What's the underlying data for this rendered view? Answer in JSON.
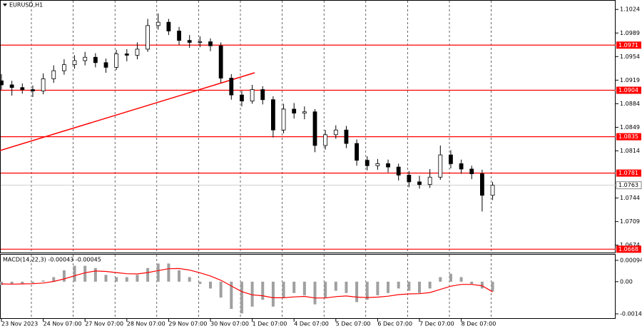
{
  "chart_data": [
    {
      "type": "candlestick",
      "title": "EURUSD,H1",
      "categories": [
        "23 Nov 2023",
        null,
        null,
        null,
        "24 Nov 07:00",
        null,
        null,
        null,
        "27 Nov 07:00",
        null,
        null,
        null,
        "28 Nov 07:00",
        null,
        null,
        null,
        "29 Nov 07:00",
        null,
        null,
        null,
        "30 Nov 07:00",
        null,
        null,
        null,
        "1 Dec 07:00",
        null,
        null,
        null,
        "4 Dec 07:00",
        null,
        null,
        null,
        "5 Dec 07:00",
        null,
        null,
        null,
        "6 Dec 07:00",
        null,
        null,
        null,
        "7 Dec 07:00",
        null,
        null,
        null,
        "8 Dec 07:00",
        null,
        null,
        null
      ],
      "open": [
        1.0918,
        1.0912,
        1.0908,
        1.0905,
        1.0903,
        1.0921,
        1.0933,
        1.0942,
        1.0948,
        1.0953,
        1.0945,
        1.0938,
        1.0958,
        1.0956,
        1.0965,
        1.1,
        1.1005,
        1.0992,
        1.0978,
        1.0975,
        1.0976,
        1.097,
        1.0922,
        1.0897,
        1.0888,
        1.0905,
        1.089,
        1.0845,
        1.0876,
        1.087,
        1.0872,
        1.0822,
        1.0838,
        1.0845,
        1.0825,
        1.08,
        1.0792,
        1.0795,
        1.079,
        1.0778,
        1.0768,
        1.0764,
        1.0775,
        1.0808,
        1.0795,
        1.0787,
        1.078,
        1.0748
      ],
      "high": [
        1.0928,
        1.0918,
        1.0914,
        1.0911,
        1.0929,
        1.0941,
        1.095,
        1.0956,
        1.0961,
        1.0959,
        1.0951,
        1.0964,
        1.0965,
        1.0975,
        1.101,
        1.1018,
        1.101,
        1.0998,
        1.0986,
        1.0984,
        1.0981,
        1.0975,
        1.0928,
        1.0903,
        1.0912,
        1.091,
        1.0895,
        1.0884,
        1.0885,
        1.088,
        1.0876,
        1.0845,
        1.0852,
        1.0851,
        1.0831,
        1.0806,
        1.0802,
        1.0801,
        1.0795,
        1.0784,
        1.0777,
        1.0787,
        1.0822,
        1.0815,
        1.0801,
        1.0792,
        1.0786,
        1.0768
      ],
      "low": [
        1.0905,
        1.0896,
        1.0899,
        1.0894,
        1.0898,
        1.0915,
        1.0927,
        1.0936,
        1.0941,
        1.0938,
        1.093,
        1.0934,
        1.0947,
        1.095,
        1.0961,
        1.0994,
        1.0986,
        1.0971,
        1.0967,
        1.0968,
        1.0962,
        1.0915,
        1.089,
        1.088,
        1.0884,
        1.0883,
        1.0834,
        1.084,
        1.0862,
        1.0861,
        1.0812,
        1.0816,
        1.0832,
        1.0818,
        1.0792,
        1.0785,
        1.0786,
        1.0782,
        1.077,
        1.076,
        1.0758,
        1.0759,
        1.0771,
        1.0788,
        1.078,
        1.0772,
        1.0724,
        1.0741
      ],
      "close": [
        1.0912,
        1.0908,
        1.0905,
        1.0903,
        1.0921,
        1.0933,
        1.0942,
        1.0948,
        1.0953,
        1.0945,
        1.0938,
        1.0958,
        1.0956,
        1.0965,
        1.1,
        1.1005,
        1.0992,
        1.0978,
        1.0975,
        1.0976,
        1.097,
        1.0922,
        1.0897,
        1.0888,
        1.0905,
        1.089,
        1.0845,
        1.0876,
        1.087,
        1.0872,
        1.0822,
        1.0838,
        1.0845,
        1.0825,
        1.08,
        1.0792,
        1.0795,
        1.079,
        1.0778,
        1.0768,
        1.0764,
        1.0775,
        1.0808,
        1.0795,
        1.0787,
        1.078,
        1.0748,
        1.0763
      ],
      "ylim": [
        1.0662,
        1.1038
      ],
      "yticks": [
        1.1024,
        1.0989,
        1.0954,
        1.0919,
        1.0884,
        1.0849,
        1.0814,
        1.0744,
        1.0709,
        1.0674
      ],
      "levels": [
        1.0971,
        1.0904,
        1.0835,
        1.0781,
        1.0668
      ],
      "level_color": "#ff0000",
      "current_price": 1.0763,
      "color": "#000000"
    },
    {
      "type": "macd",
      "title": "MACD(14,22,3) -0.00043 -0.00045",
      "series": [
        {
          "name": "MACD",
          "color": "#a0a0a0",
          "values": [
            -0.00015,
            -0.0001,
            -8e-05,
            -6e-05,
            5e-05,
            0.0002,
            0.0005,
            0.0007,
            0.0007,
            0.0006,
            0.0003,
            0.0002,
            0.0002,
            0.0003,
            0.0006,
            0.0008,
            0.0008,
            0.0005,
            0.0002,
            -0.0001,
            -0.0003,
            -0.0007,
            -0.0012,
            -0.0014,
            -0.0011,
            -0.0008,
            -0.0011,
            -0.0007,
            -0.0005,
            -0.0006,
            -0.001,
            -0.0007,
            -0.0004,
            -0.0005,
            -0.0009,
            -0.0008,
            -0.0006,
            -0.0005,
            -0.0003,
            -0.0004,
            -0.0005,
            -0.0003,
            0.0002,
            0.00035,
            0.0002,
            -0.0001,
            -0.0003,
            -0.00043
          ]
        },
        {
          "name": "Signal",
          "color": "#ff0000",
          "values": [
            -0.0001,
            -0.00011,
            -0.0001,
            -9e-05,
            -6e-05,
            1e-05,
            0.00012,
            0.00026,
            0.00039,
            0.00047,
            0.00045,
            0.0004,
            0.00035,
            0.00034,
            0.0004,
            0.00049,
            0.00057,
            0.00058,
            0.00051,
            0.00039,
            0.00025,
            6e-05,
            -0.00019,
            -0.00044,
            -0.00058,
            -0.00062,
            -0.00071,
            -0.00071,
            -0.00067,
            -0.00065,
            -0.00072,
            -0.00072,
            -0.00066,
            -0.00063,
            -0.00068,
            -0.0007,
            -0.00068,
            -0.00064,
            -0.00057,
            -0.00054,
            -0.00053,
            -0.00048,
            -0.00034,
            -0.0002,
            -0.00012,
            -0.00012,
            -0.00018,
            -0.00045
          ]
        }
      ],
      "ylim": [
        -0.00164,
        0.00119
      ],
      "yticks": [
        0.00094,
        {
          "value": 0,
          "label": "0.00"
        },
        -0.00142
      ]
    }
  ]
}
